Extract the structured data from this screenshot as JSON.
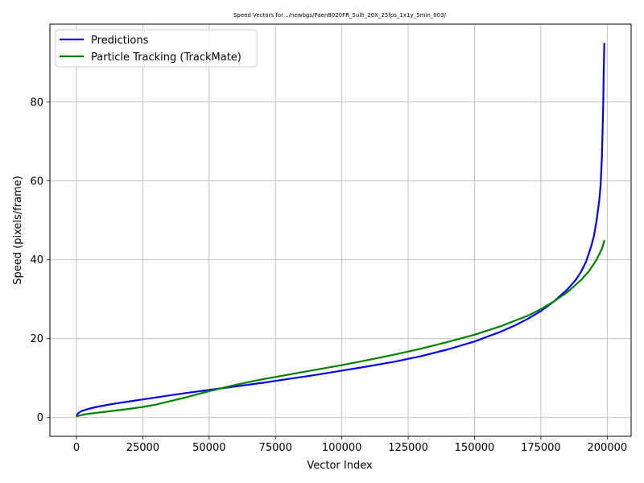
{
  "chart_data": {
    "type": "line",
    "title": "Speed Vectors for ../newbgs/Paen8020FR_5ulh_20X_25fps_1x1y_5min_003/",
    "xlabel": "Vector Index",
    "ylabel": "Speed (pixels/frame)",
    "xlim": [
      -10000,
      209000
    ],
    "ylim": [
      -4.75,
      99.75
    ],
    "xticks": [
      0,
      25000,
      50000,
      75000,
      100000,
      125000,
      150000,
      175000,
      200000
    ],
    "yticks": [
      0,
      20,
      40,
      60,
      80
    ],
    "grid": true,
    "legend_position": "top-left",
    "series": [
      {
        "name": "Predictions",
        "color": "#0000ee",
        "x": [
          0,
          500,
          1500,
          3000,
          5000,
          7500,
          10000,
          15000,
          20000,
          25000,
          30000,
          40000,
          50000,
          60000,
          70000,
          80000,
          90000,
          100000,
          110000,
          120000,
          130000,
          140000,
          150000,
          160000,
          165000,
          170000,
          175000,
          180000,
          185000,
          188000,
          190000,
          192000,
          194000,
          195000,
          196000,
          197000,
          197500,
          198000,
          198300,
          198500,
          198700,
          198900
        ],
        "y": [
          0.2,
          1.0,
          1.5,
          1.9,
          2.3,
          2.7,
          3.0,
          3.6,
          4.1,
          4.6,
          5.1,
          6.1,
          7.0,
          7.9,
          8.8,
          9.8,
          10.8,
          11.9,
          13.0,
          14.2,
          15.6,
          17.3,
          19.3,
          21.8,
          23.3,
          25.0,
          27.0,
          29.5,
          32.5,
          34.8,
          36.8,
          39.5,
          43.5,
          46.0,
          50.0,
          55.0,
          59.0,
          66.0,
          74.0,
          80.0,
          88.0,
          95.0
        ]
      },
      {
        "name": "Particle Tracking (TrackMate)",
        "color": "#008000",
        "x": [
          0,
          1000,
          3000,
          5000,
          10000,
          15000,
          20000,
          25000,
          30000,
          35000,
          40000,
          45000,
          50000,
          55000,
          60000,
          65000,
          70000,
          75000,
          80000,
          90000,
          100000,
          110000,
          120000,
          130000,
          140000,
          150000,
          160000,
          170000,
          175000,
          180000,
          185000,
          190000,
          193000,
          196000,
          198000,
          199000
        ],
        "y": [
          0.3,
          0.5,
          0.8,
          1.0,
          1.4,
          1.8,
          2.2,
          2.7,
          3.3,
          4.1,
          4.9,
          5.8,
          6.7,
          7.5,
          8.3,
          9.0,
          9.7,
          10.3,
          10.9,
          12.1,
          13.3,
          14.6,
          16.0,
          17.5,
          19.2,
          21.0,
          23.2,
          25.8,
          27.5,
          29.5,
          31.8,
          34.8,
          37.0,
          40.0,
          42.8,
          45.0
        ]
      }
    ]
  }
}
